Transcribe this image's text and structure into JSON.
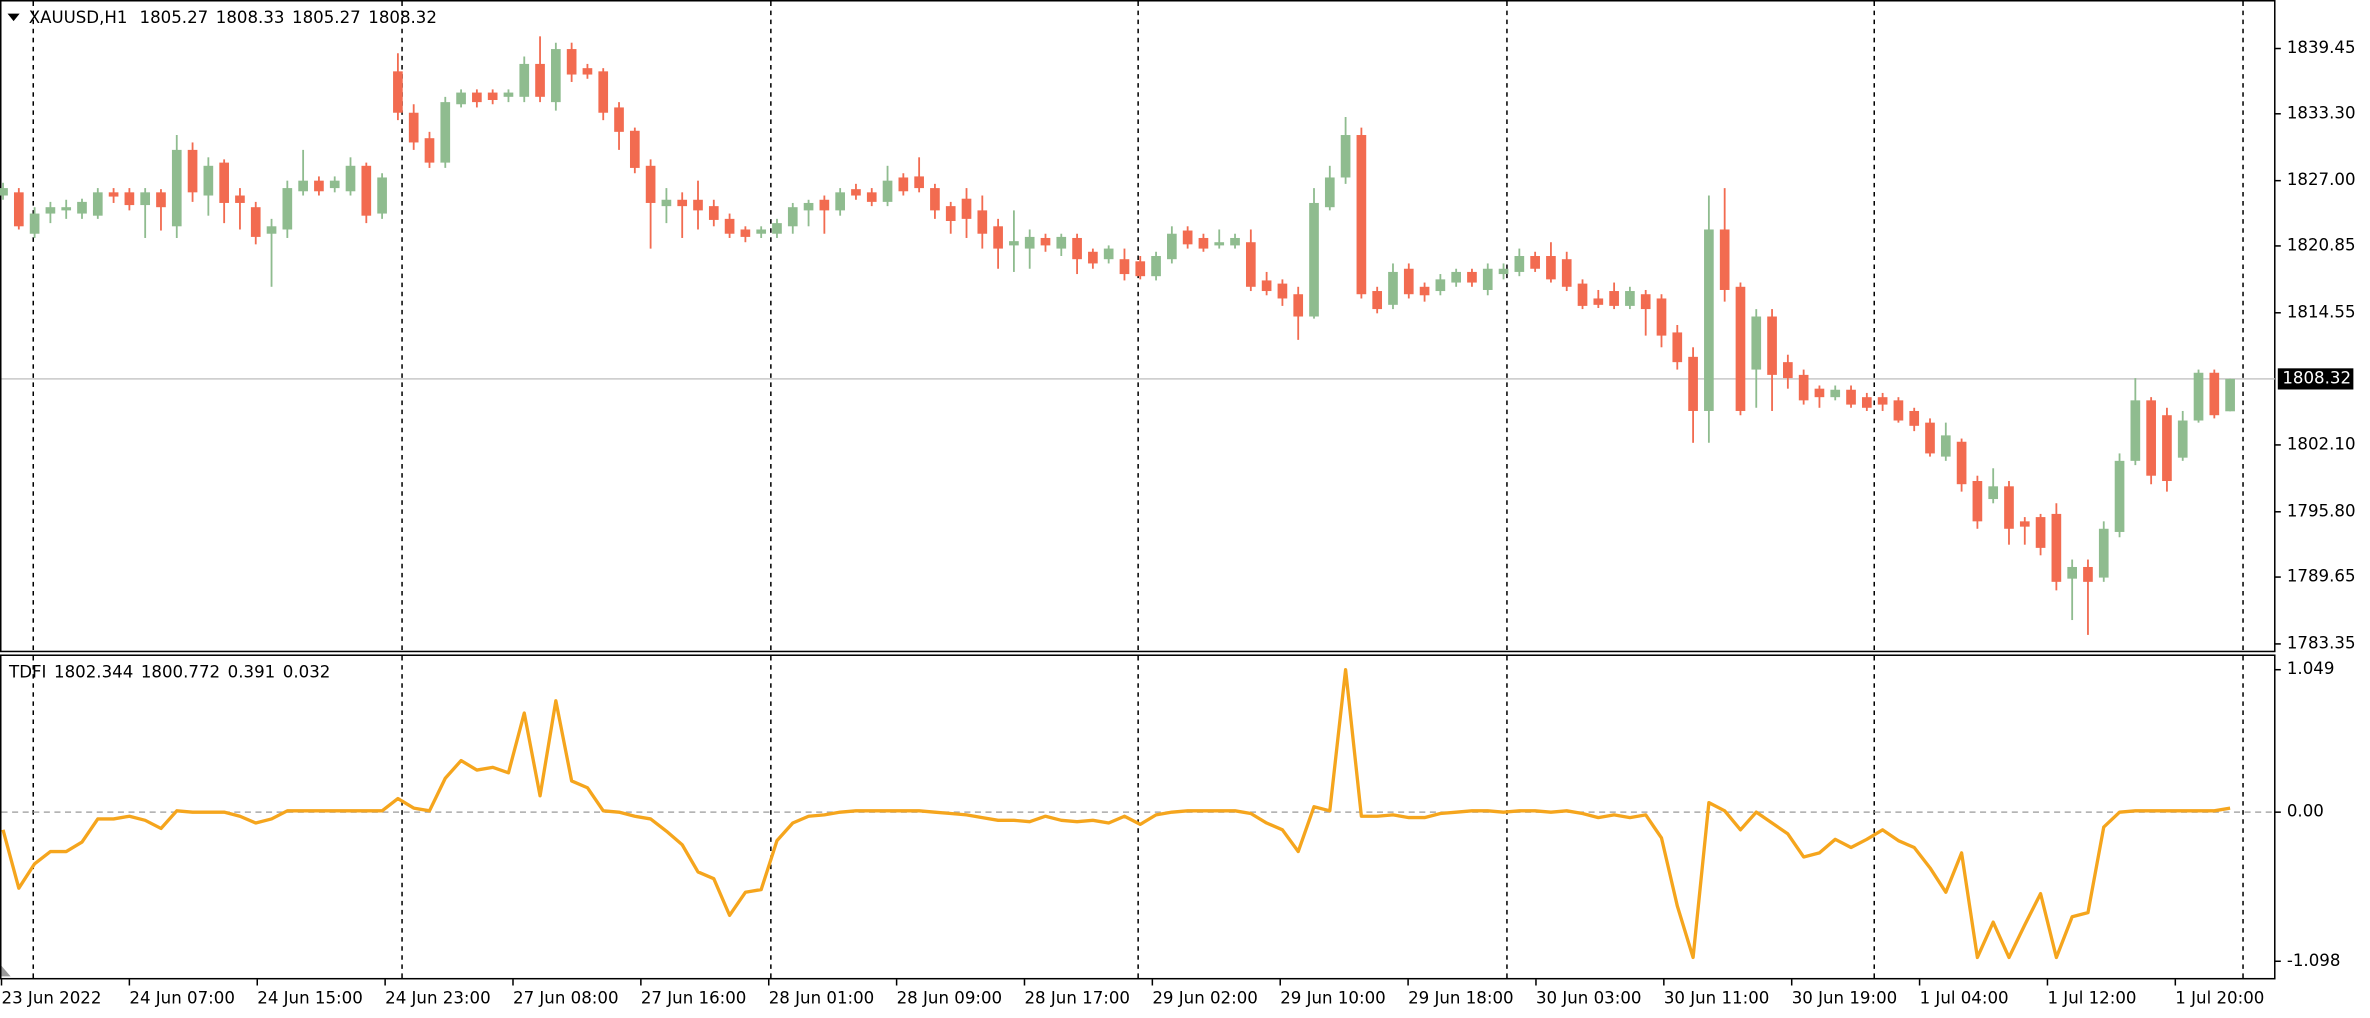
{
  "chart_data": [
    {
      "type": "candlestick",
      "symbol": "XAUUSD,H1",
      "up_color": "#8fbc8f",
      "down_color": "#f26b50",
      "grid_color": "#c8c8c8",
      "ylim": [
        1782.64,
        1843.88
      ],
      "yticks": [
        1839.45,
        {
          "value": 1833.3,
          "label": "1833.30"
        },
        {
          "value": 1827,
          "label": "1827.00"
        },
        1820.85,
        1814.55,
        {
          "value": 1802.1,
          "label": "1802.10"
        },
        {
          "value": 1795.8,
          "label": "1795.80"
        },
        1789.65,
        1783.35
      ],
      "x_labels": [
        "23 Jun 2022",
        "24 Jun 07:00",
        "24 Jun 15:00",
        "24 Jun 23:00",
        "27 Jun 08:00",
        "27 Jun 16:00",
        "28 Jun 01:00",
        "28 Jun 09:00",
        "28 Jun 17:00",
        "29 Jun 02:00",
        "29 Jun 10:00",
        "29 Jun 18:00",
        "30 Jun 03:00",
        "30 Jun 11:00",
        "30 Jun 19:00",
        "1 Jul 04:00",
        "1 Jul 12:00",
        "1 Jul 20:00"
      ],
      "candles": [
        [
          1825.6,
          1826.8,
          1825.2,
          1826.3
        ],
        [
          1825.9,
          1826.3,
          1822.4,
          1822.7
        ],
        [
          1822.0,
          1824.5,
          1821.6,
          1823.9
        ],
        [
          1823.9,
          1825.0,
          1823.0,
          1824.5
        ],
        [
          1824.2,
          1825.2,
          1823.4,
          1824.5
        ],
        [
          1823.9,
          1825.3,
          1823.4,
          1825.0
        ],
        [
          1823.7,
          1826.3,
          1823.4,
          1825.9
        ],
        [
          1825.9,
          1826.3,
          1824.9,
          1825.5
        ],
        [
          1825.9,
          1826.3,
          1824.2,
          1824.7
        ],
        [
          1824.7,
          1826.3,
          1821.6,
          1825.9
        ],
        [
          1825.9,
          1826.2,
          1822.3,
          1824.5
        ],
        [
          1822.7,
          1831.3,
          1821.6,
          1829.9
        ],
        [
          1829.9,
          1830.6,
          1825.0,
          1825.9
        ],
        [
          1825.6,
          1829.2,
          1823.7,
          1828.4
        ],
        [
          1828.7,
          1829.0,
          1823.0,
          1824.9
        ],
        [
          1825.6,
          1826.3,
          1822.4,
          1824.9
        ],
        [
          1824.5,
          1825.0,
          1821.0,
          1821.7
        ],
        [
          1822.0,
          1823.4,
          1817.0,
          1822.7
        ],
        [
          1822.4,
          1827.0,
          1821.6,
          1826.3
        ],
        [
          1826.0,
          1829.9,
          1825.6,
          1827.0
        ],
        [
          1827.0,
          1827.4,
          1825.6,
          1826.0
        ],
        [
          1826.3,
          1827.4,
          1825.9,
          1827.0
        ],
        [
          1826.0,
          1829.2,
          1825.6,
          1828.4
        ],
        [
          1828.4,
          1828.7,
          1823.0,
          1823.7
        ],
        [
          1823.9,
          1827.7,
          1823.4,
          1827.3
        ],
        [
          1837.3,
          1839.0,
          1832.7,
          1833.4
        ],
        [
          1833.4,
          1834.2,
          1829.9,
          1830.6
        ],
        [
          1831.0,
          1831.6,
          1828.2,
          1828.7
        ],
        [
          1828.7,
          1834.9,
          1828.2,
          1834.4
        ],
        [
          1834.2,
          1835.6,
          1833.9,
          1835.3
        ],
        [
          1835.3,
          1835.6,
          1833.9,
          1834.4
        ],
        [
          1835.3,
          1835.6,
          1834.2,
          1834.6
        ],
        [
          1834.9,
          1835.6,
          1834.4,
          1835.3
        ],
        [
          1834.9,
          1838.7,
          1834.4,
          1838.0
        ],
        [
          1838.0,
          1840.6,
          1834.4,
          1834.9
        ],
        [
          1834.4,
          1840.0,
          1833.6,
          1839.4
        ],
        [
          1839.4,
          1840.0,
          1836.3,
          1837.0
        ],
        [
          1837.6,
          1838.0,
          1836.6,
          1837.0
        ],
        [
          1837.3,
          1837.6,
          1832.7,
          1833.4
        ],
        [
          1833.9,
          1834.4,
          1829.9,
          1831.6
        ],
        [
          1831.7,
          1832.0,
          1827.7,
          1828.2
        ],
        [
          1828.4,
          1829.0,
          1820.6,
          1824.9
        ],
        [
          1824.6,
          1826.3,
          1823.0,
          1825.2
        ],
        [
          1825.2,
          1825.9,
          1821.6,
          1824.6
        ],
        [
          1825.2,
          1827.0,
          1822.4,
          1824.2
        ],
        [
          1824.6,
          1825.2,
          1822.7,
          1823.3
        ],
        [
          1823.4,
          1823.9,
          1821.6,
          1822.0
        ],
        [
          1822.4,
          1822.7,
          1821.2,
          1821.7
        ],
        [
          1822.0,
          1822.7,
          1821.6,
          1822.4
        ],
        [
          1822.0,
          1823.4,
          1821.6,
          1823.0
        ],
        [
          1822.7,
          1824.9,
          1822.0,
          1824.5
        ],
        [
          1824.2,
          1825.2,
          1822.7,
          1824.9
        ],
        [
          1825.2,
          1825.6,
          1822.0,
          1824.2
        ],
        [
          1824.2,
          1826.3,
          1823.7,
          1825.9
        ],
        [
          1826.2,
          1826.7,
          1825.2,
          1825.6
        ],
        [
          1825.9,
          1826.3,
          1824.6,
          1825.0
        ],
        [
          1825.0,
          1828.4,
          1824.6,
          1827.0
        ],
        [
          1827.3,
          1827.7,
          1825.6,
          1826.0
        ],
        [
          1827.4,
          1829.2,
          1825.9,
          1826.3
        ],
        [
          1826.3,
          1826.7,
          1823.4,
          1824.2
        ],
        [
          1824.6,
          1825.0,
          1822.0,
          1823.2
        ],
        [
          1825.3,
          1826.3,
          1821.6,
          1823.4
        ],
        [
          1824.2,
          1825.6,
          1820.6,
          1822.0
        ],
        [
          1822.7,
          1823.4,
          1818.7,
          1820.6
        ],
        [
          1820.9,
          1824.2,
          1818.4,
          1821.3
        ],
        [
          1820.6,
          1822.4,
          1818.7,
          1821.7
        ],
        [
          1821.6,
          1822.0,
          1820.3,
          1820.9
        ],
        [
          1820.6,
          1822.0,
          1819.9,
          1821.7
        ],
        [
          1821.6,
          1822.0,
          1818.2,
          1819.6
        ],
        [
          1820.3,
          1820.6,
          1818.7,
          1819.2
        ],
        [
          1819.6,
          1820.9,
          1819.2,
          1820.6
        ],
        [
          1819.6,
          1820.6,
          1817.6,
          1818.2
        ],
        [
          1819.4,
          1819.9,
          1817.7,
          1818.0
        ],
        [
          1818.0,
          1820.3,
          1817.6,
          1819.9
        ],
        [
          1819.6,
          1822.7,
          1819.2,
          1822.0
        ],
        [
          1822.3,
          1822.7,
          1820.6,
          1821.0
        ],
        [
          1821.6,
          1822.0,
          1820.3,
          1820.6
        ],
        [
          1820.9,
          1822.4,
          1820.6,
          1821.2
        ],
        [
          1820.9,
          1822.0,
          1820.6,
          1821.6
        ],
        [
          1821.2,
          1822.4,
          1816.6,
          1817.0
        ],
        [
          1817.6,
          1818.4,
          1816.2,
          1816.6
        ],
        [
          1817.3,
          1817.7,
          1815.2,
          1815.9
        ],
        [
          1816.3,
          1817.0,
          1812.0,
          1814.2
        ],
        [
          1814.2,
          1826.3,
          1814.0,
          1824.9
        ],
        [
          1824.5,
          1828.4,
          1824.2,
          1827.3
        ],
        [
          1827.3,
          1833.0,
          1826.7,
          1831.3
        ],
        [
          1831.3,
          1832.0,
          1815.9,
          1816.3
        ],
        [
          1816.6,
          1817.0,
          1814.5,
          1814.9
        ],
        [
          1815.3,
          1819.2,
          1814.9,
          1818.4
        ],
        [
          1818.7,
          1819.2,
          1815.9,
          1816.3
        ],
        [
          1817.0,
          1817.4,
          1815.6,
          1816.2
        ],
        [
          1816.6,
          1818.2,
          1816.2,
          1817.7
        ],
        [
          1817.4,
          1818.7,
          1817.0,
          1818.4
        ],
        [
          1818.4,
          1818.7,
          1817.0,
          1817.4
        ],
        [
          1816.7,
          1819.2,
          1816.2,
          1818.7
        ],
        [
          1818.2,
          1819.2,
          1817.7,
          1818.7
        ],
        [
          1818.4,
          1820.6,
          1818.0,
          1819.9
        ],
        [
          1819.9,
          1820.3,
          1818.4,
          1818.7
        ],
        [
          1819.9,
          1821.2,
          1817.4,
          1817.7
        ],
        [
          1819.6,
          1820.3,
          1816.6,
          1817.0
        ],
        [
          1817.3,
          1817.7,
          1814.9,
          1815.2
        ],
        [
          1815.9,
          1816.7,
          1815.0,
          1815.3
        ],
        [
          1816.6,
          1817.4,
          1814.9,
          1815.2
        ],
        [
          1815.2,
          1817.0,
          1814.9,
          1816.6
        ],
        [
          1816.3,
          1816.7,
          1812.4,
          1814.9
        ],
        [
          1815.9,
          1816.3,
          1811.3,
          1812.4
        ],
        [
          1812.7,
          1813.4,
          1809.2,
          1809.9
        ],
        [
          1810.4,
          1811.3,
          1802.3,
          1805.3
        ],
        [
          1805.3,
          1825.6,
          1802.3,
          1822.4
        ],
        [
          1822.4,
          1826.3,
          1815.6,
          1816.7
        ],
        [
          1817.0,
          1817.4,
          1804.9,
          1805.3
        ],
        [
          1809.2,
          1814.9,
          1805.6,
          1814.2
        ],
        [
          1814.2,
          1814.9,
          1805.3,
          1808.7
        ],
        [
          1809.9,
          1810.6,
          1807.4,
          1808.4
        ],
        [
          1808.7,
          1809.2,
          1805.9,
          1806.3
        ],
        [
          1807.4,
          1807.7,
          1805.6,
          1806.6
        ],
        [
          1806.6,
          1807.7,
          1806.3,
          1807.3
        ],
        [
          1807.3,
          1807.7,
          1805.6,
          1805.9
        ],
        [
          1806.6,
          1807.0,
          1805.3,
          1805.6
        ],
        [
          1806.6,
          1807.0,
          1805.3,
          1805.9
        ],
        [
          1806.3,
          1806.6,
          1804.2,
          1804.4
        ],
        [
          1805.3,
          1805.6,
          1803.4,
          1803.9
        ],
        [
          1804.2,
          1804.6,
          1801.0,
          1801.3
        ],
        [
          1801.0,
          1804.2,
          1800.6,
          1803.0
        ],
        [
          1802.4,
          1802.7,
          1797.7,
          1798.4
        ],
        [
          1798.7,
          1799.2,
          1794.2,
          1794.9
        ],
        [
          1797.0,
          1799.9,
          1796.6,
          1798.2
        ],
        [
          1798.2,
          1798.7,
          1792.7,
          1794.2
        ],
        [
          1794.9,
          1795.3,
          1792.7,
          1794.4
        ],
        [
          1795.3,
          1795.6,
          1791.7,
          1792.4
        ],
        [
          1795.6,
          1796.6,
          1788.4,
          1789.2
        ],
        [
          1789.5,
          1791.3,
          1785.6,
          1790.6
        ],
        [
          1790.6,
          1791.3,
          1784.2,
          1789.2
        ],
        [
          1789.6,
          1794.9,
          1789.2,
          1794.2
        ],
        [
          1793.9,
          1801.3,
          1793.4,
          1800.6
        ],
        [
          1800.6,
          1808.4,
          1800.2,
          1806.3
        ],
        [
          1806.3,
          1806.6,
          1798.4,
          1799.2
        ],
        [
          1804.9,
          1805.6,
          1797.7,
          1798.7
        ],
        [
          1800.9,
          1805.3,
          1800.6,
          1804.4
        ],
        [
          1804.4,
          1809.2,
          1804.2,
          1808.9
        ],
        [
          1808.9,
          1809.2,
          1804.6,
          1804.9
        ],
        [
          1805.27,
          1808.33,
          1805.27,
          1808.32
        ]
      ]
    },
    {
      "type": "line",
      "label": "TDFI",
      "readout": [
        1802.344,
        1800.772,
        0.391,
        0.032
      ],
      "color": "#f5a51d",
      "zero_line": true,
      "ylim": [
        -1.232,
        1.15
      ],
      "yticks": [
        1.049,
        {
          "value": 0,
          "label": "0.00"
        },
        -1.098
      ],
      "values": [
        -0.13,
        -0.56,
        -0.38,
        -0.29,
        -0.29,
        -0.22,
        -0.05,
        -0.05,
        -0.03,
        -0.06,
        -0.12,
        0.01,
        0,
        0,
        0,
        -0.03,
        -0.08,
        -0.05,
        0.01,
        0.01,
        0.01,
        0.01,
        0.01,
        0.01,
        0.01,
        0.1,
        0.03,
        0.01,
        0.25,
        0.38,
        0.31,
        0.33,
        0.29,
        0.73,
        0.12,
        0.82,
        0.23,
        0.18,
        0.01,
        0,
        -0.03,
        -0.05,
        -0.14,
        -0.24,
        -0.44,
        -0.49,
        -0.76,
        -0.59,
        -0.57,
        -0.21,
        -0.08,
        -0.03,
        -0.02,
        0,
        0.01,
        0.01,
        0.01,
        0.01,
        0.01,
        0,
        -0.01,
        -0.02,
        -0.04,
        -0.06,
        -0.06,
        -0.07,
        -0.03,
        -0.06,
        -0.07,
        -0.06,
        -0.08,
        -0.03,
        -0.09,
        -0.02,
        0,
        0.01,
        0.01,
        0.01,
        0.01,
        -0.01,
        -0.08,
        -0.13,
        -0.29,
        0.04,
        0.01,
        1.049,
        -0.03,
        -0.03,
        -0.02,
        -0.04,
        -0.04,
        -0.01,
        0,
        0.01,
        0.01,
        0,
        0.01,
        0.01,
        0,
        0.01,
        -0.01,
        -0.04,
        -0.02,
        -0.04,
        -0.02,
        -0.19,
        -0.69,
        -1.07,
        0.07,
        0.01,
        -0.13,
        0,
        -0.08,
        -0.16,
        -0.33,
        -0.3,
        -0.2,
        -0.26,
        -0.2,
        -0.13,
        -0.21,
        -0.26,
        -0.41,
        -0.59,
        -0.3,
        -1.07,
        -0.81,
        -1.07,
        -0.83,
        -0.6,
        -1.07,
        -0.77,
        -0.74,
        -0.11,
        0,
        0.01,
        0.01,
        0.01,
        0.01,
        0.01,
        0.01,
        0.03
      ]
    }
  ]
}
